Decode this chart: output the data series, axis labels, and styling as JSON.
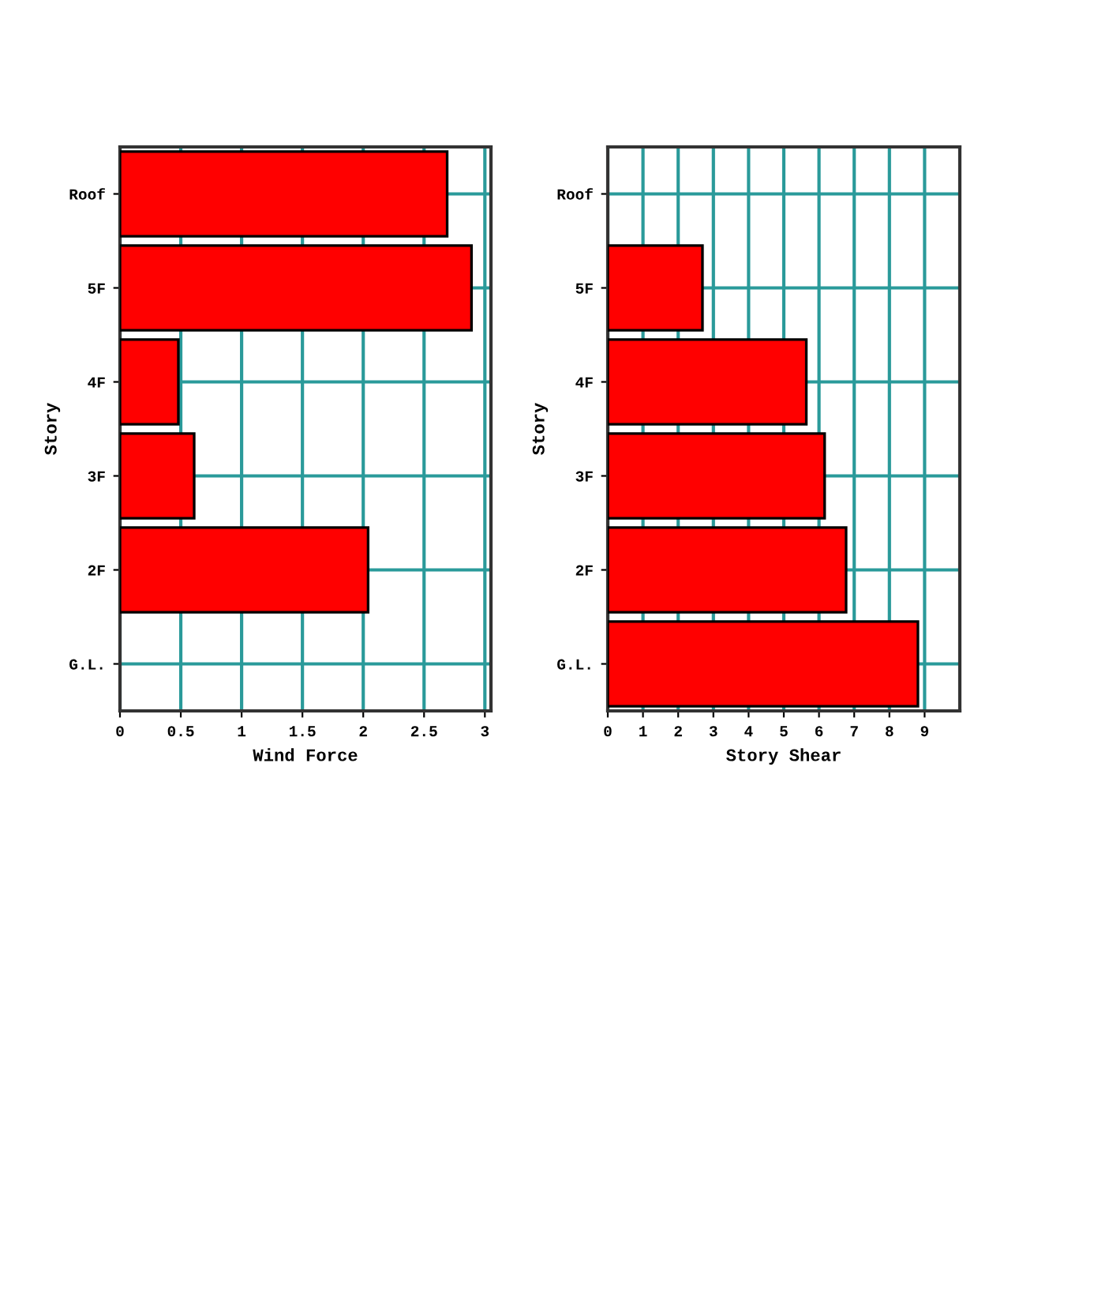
{
  "chart_data": [
    {
      "type": "bar",
      "orientation": "horizontal",
      "categories": [
        "Roof",
        "5F",
        "4F",
        "3F",
        "2F",
        "G.L."
      ],
      "values": [
        2.69,
        2.89,
        0.48,
        0.61,
        2.04,
        null
      ],
      "color": "#ff0000",
      "xlabel": "Wind Force",
      "ylabel": "Story",
      "xlim": [
        0,
        3.05
      ],
      "xticks": [
        0,
        0.5,
        1,
        1.5,
        2,
        2.5,
        3
      ],
      "grid": true
    },
    {
      "type": "bar",
      "orientation": "horizontal",
      "categories": [
        "Roof",
        "5F",
        "4F",
        "3F",
        "2F",
        "G.L."
      ],
      "values": [
        null,
        2.69,
        5.64,
        6.16,
        6.77,
        8.81
      ],
      "color": "#ff0000",
      "xlabel": "Story Shear",
      "ylabel": "Story",
      "xlim": [
        0,
        10
      ],
      "xticks": [
        0,
        1,
        2,
        3,
        4,
        5,
        6,
        7,
        8,
        9
      ],
      "grid": true
    }
  ]
}
